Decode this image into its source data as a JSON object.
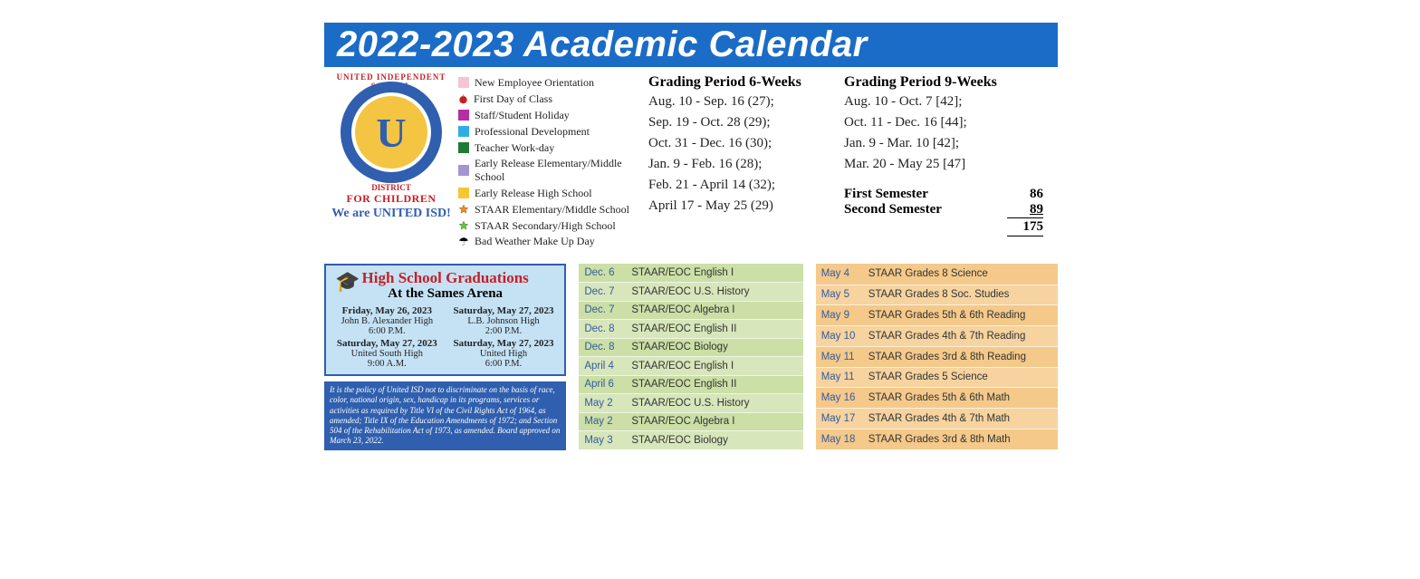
{
  "title": "2022-2023 Academic Calendar",
  "title_bg": "#1a6cc7",
  "title_color": "#ffffff",
  "logo": {
    "arc_top": "UNITED INDEPENDENT SCHOOL",
    "arc_bottom": "DISTRICT",
    "letter": "U",
    "tag1": "FOR CHILDREN",
    "tag2": "We are UNITED ISD!",
    "ring_color": "#2f5fae",
    "center_bg": "#f4c542",
    "tag1_color": "#c62027",
    "tag2_color": "#2f5fae"
  },
  "legend": [
    {
      "type": "box",
      "color": "#f7c3d6",
      "label": "New Employee Orientation"
    },
    {
      "type": "apple",
      "color": "#c62027",
      "label": "First Day of Class"
    },
    {
      "type": "box",
      "color": "#b82da3",
      "label": "Staff/Student Holiday"
    },
    {
      "type": "box",
      "color": "#2eaee4",
      "label": "Professional Development"
    },
    {
      "type": "box",
      "color": "#1f7a38",
      "label": "Teacher Work-day"
    },
    {
      "type": "box",
      "color": "#a396d0",
      "label": "Early Release Elementary/Middle School"
    },
    {
      "type": "box",
      "color": "#f8c631",
      "label": "Early Release High School"
    },
    {
      "type": "star",
      "color": "#f28a1c",
      "label": "STAAR Elementary/Middle School"
    },
    {
      "type": "star",
      "color": "#68c43a",
      "label": "STAAR Secondary/High School"
    },
    {
      "type": "umbrella",
      "color": "#000000",
      "label": "Bad Weather Make Up Day"
    }
  ],
  "grading6": {
    "title": "Grading Period 6-Weeks",
    "items": [
      "Aug. 10 - Sep. 16 (27);",
      "Sep. 19 - Oct. 28 (29);",
      "Oct. 31 - Dec. 16 (30);",
      "Jan. 9 - Feb. 16 (28);",
      "Feb. 21 - April 14 (32);",
      "April 17 - May 25 (29)"
    ]
  },
  "grading9": {
    "title": "Grading Period 9-Weeks",
    "items": [
      "Aug. 10 - Oct. 7 [42];",
      "Oct. 11 - Dec. 16 [44];",
      "Jan. 9 - Mar. 10 [42];",
      "Mar. 20 - May 25 [47]"
    ]
  },
  "semesters": {
    "first_label": "First Semester",
    "first_val": "86",
    "second_label": "Second Semester",
    "second_val": "89",
    "total_val": "175"
  },
  "graduations": {
    "title": "High School Graduations",
    "subtitle": "At the Sames Arena",
    "cells": [
      {
        "date": "Friday, May 26, 2023",
        "school": "John B. Alexander High",
        "time": "6:00 P.M."
      },
      {
        "date": "Saturday, May 27, 2023",
        "school": "L.B. Johnson High",
        "time": "2:00 P.M."
      },
      {
        "date": "Saturday, May 27, 2023",
        "school": "United South High",
        "time": "9:00 A.M."
      },
      {
        "date": "Saturday, May 27, 2023",
        "school": "United High",
        "time": "6:00 P.M."
      }
    ],
    "box_bg": "#c5e2f5",
    "box_border": "#2f5fae",
    "title_color": "#c62027"
  },
  "policy": "It is the policy of United ISD not to discriminate on the basis of race, color, national origin, sex, handicap in its programs, services or activities as required by Title VI of the Civil Rights Act of 1964, as amended; Title IX of the Education Amendments of 1972; and Section 504 of the Rehabilitation Act of 1973, as amended.  Board approved on March 23, 2022.",
  "policy_bg": "#2f5fae",
  "tests_green": {
    "bg_odd": "#cbdfa6",
    "bg_even": "#d7e6bb",
    "date_color": "#365a9c",
    "rows": [
      {
        "date": "Dec. 6",
        "event": "STAAR/EOC English I"
      },
      {
        "date": "Dec. 7",
        "event": "STAAR/EOC U.S. History"
      },
      {
        "date": "Dec. 7",
        "event": "STAAR/EOC Algebra I"
      },
      {
        "date": "Dec. 8",
        "event": "STAAR/EOC English II"
      },
      {
        "date": "Dec. 8",
        "event": "STAAR/EOC Biology"
      },
      {
        "date": "April 4",
        "event": "STAAR/EOC English I"
      },
      {
        "date": "April 6",
        "event": "STAAR/EOC English II"
      },
      {
        "date": "May 2",
        "event": "STAAR/EOC U.S. History"
      },
      {
        "date": "May 2",
        "event": "STAAR/EOC Algebra I"
      },
      {
        "date": "May 3",
        "event": "STAAR/EOC Biology"
      }
    ]
  },
  "tests_orange": {
    "bg_odd": "#f4c98a",
    "bg_even": "#f6d39f",
    "date_color": "#365a9c",
    "rows": [
      {
        "date": "May 4",
        "event": "STAAR Grades 8 Science"
      },
      {
        "date": "May 5",
        "event": "STAAR Grades 8 Soc. Studies"
      },
      {
        "date": "May 9",
        "event": "STAAR Grades 5th & 6th Reading"
      },
      {
        "date": "May 10",
        "event": "STAAR Grades 4th & 7th Reading"
      },
      {
        "date": "May 11",
        "event": "STAAR Grades 3rd & 8th Reading"
      },
      {
        "date": "May 11",
        "event": "STAAR Grades 5 Science"
      },
      {
        "date": "May 16",
        "event": "STAAR Grades 5th & 6th Math"
      },
      {
        "date": "May 17",
        "event": "STAAR Grades 4th & 7th Math"
      },
      {
        "date": "May 18",
        "event": "STAAR Grades 3rd & 8th Math"
      }
    ]
  }
}
